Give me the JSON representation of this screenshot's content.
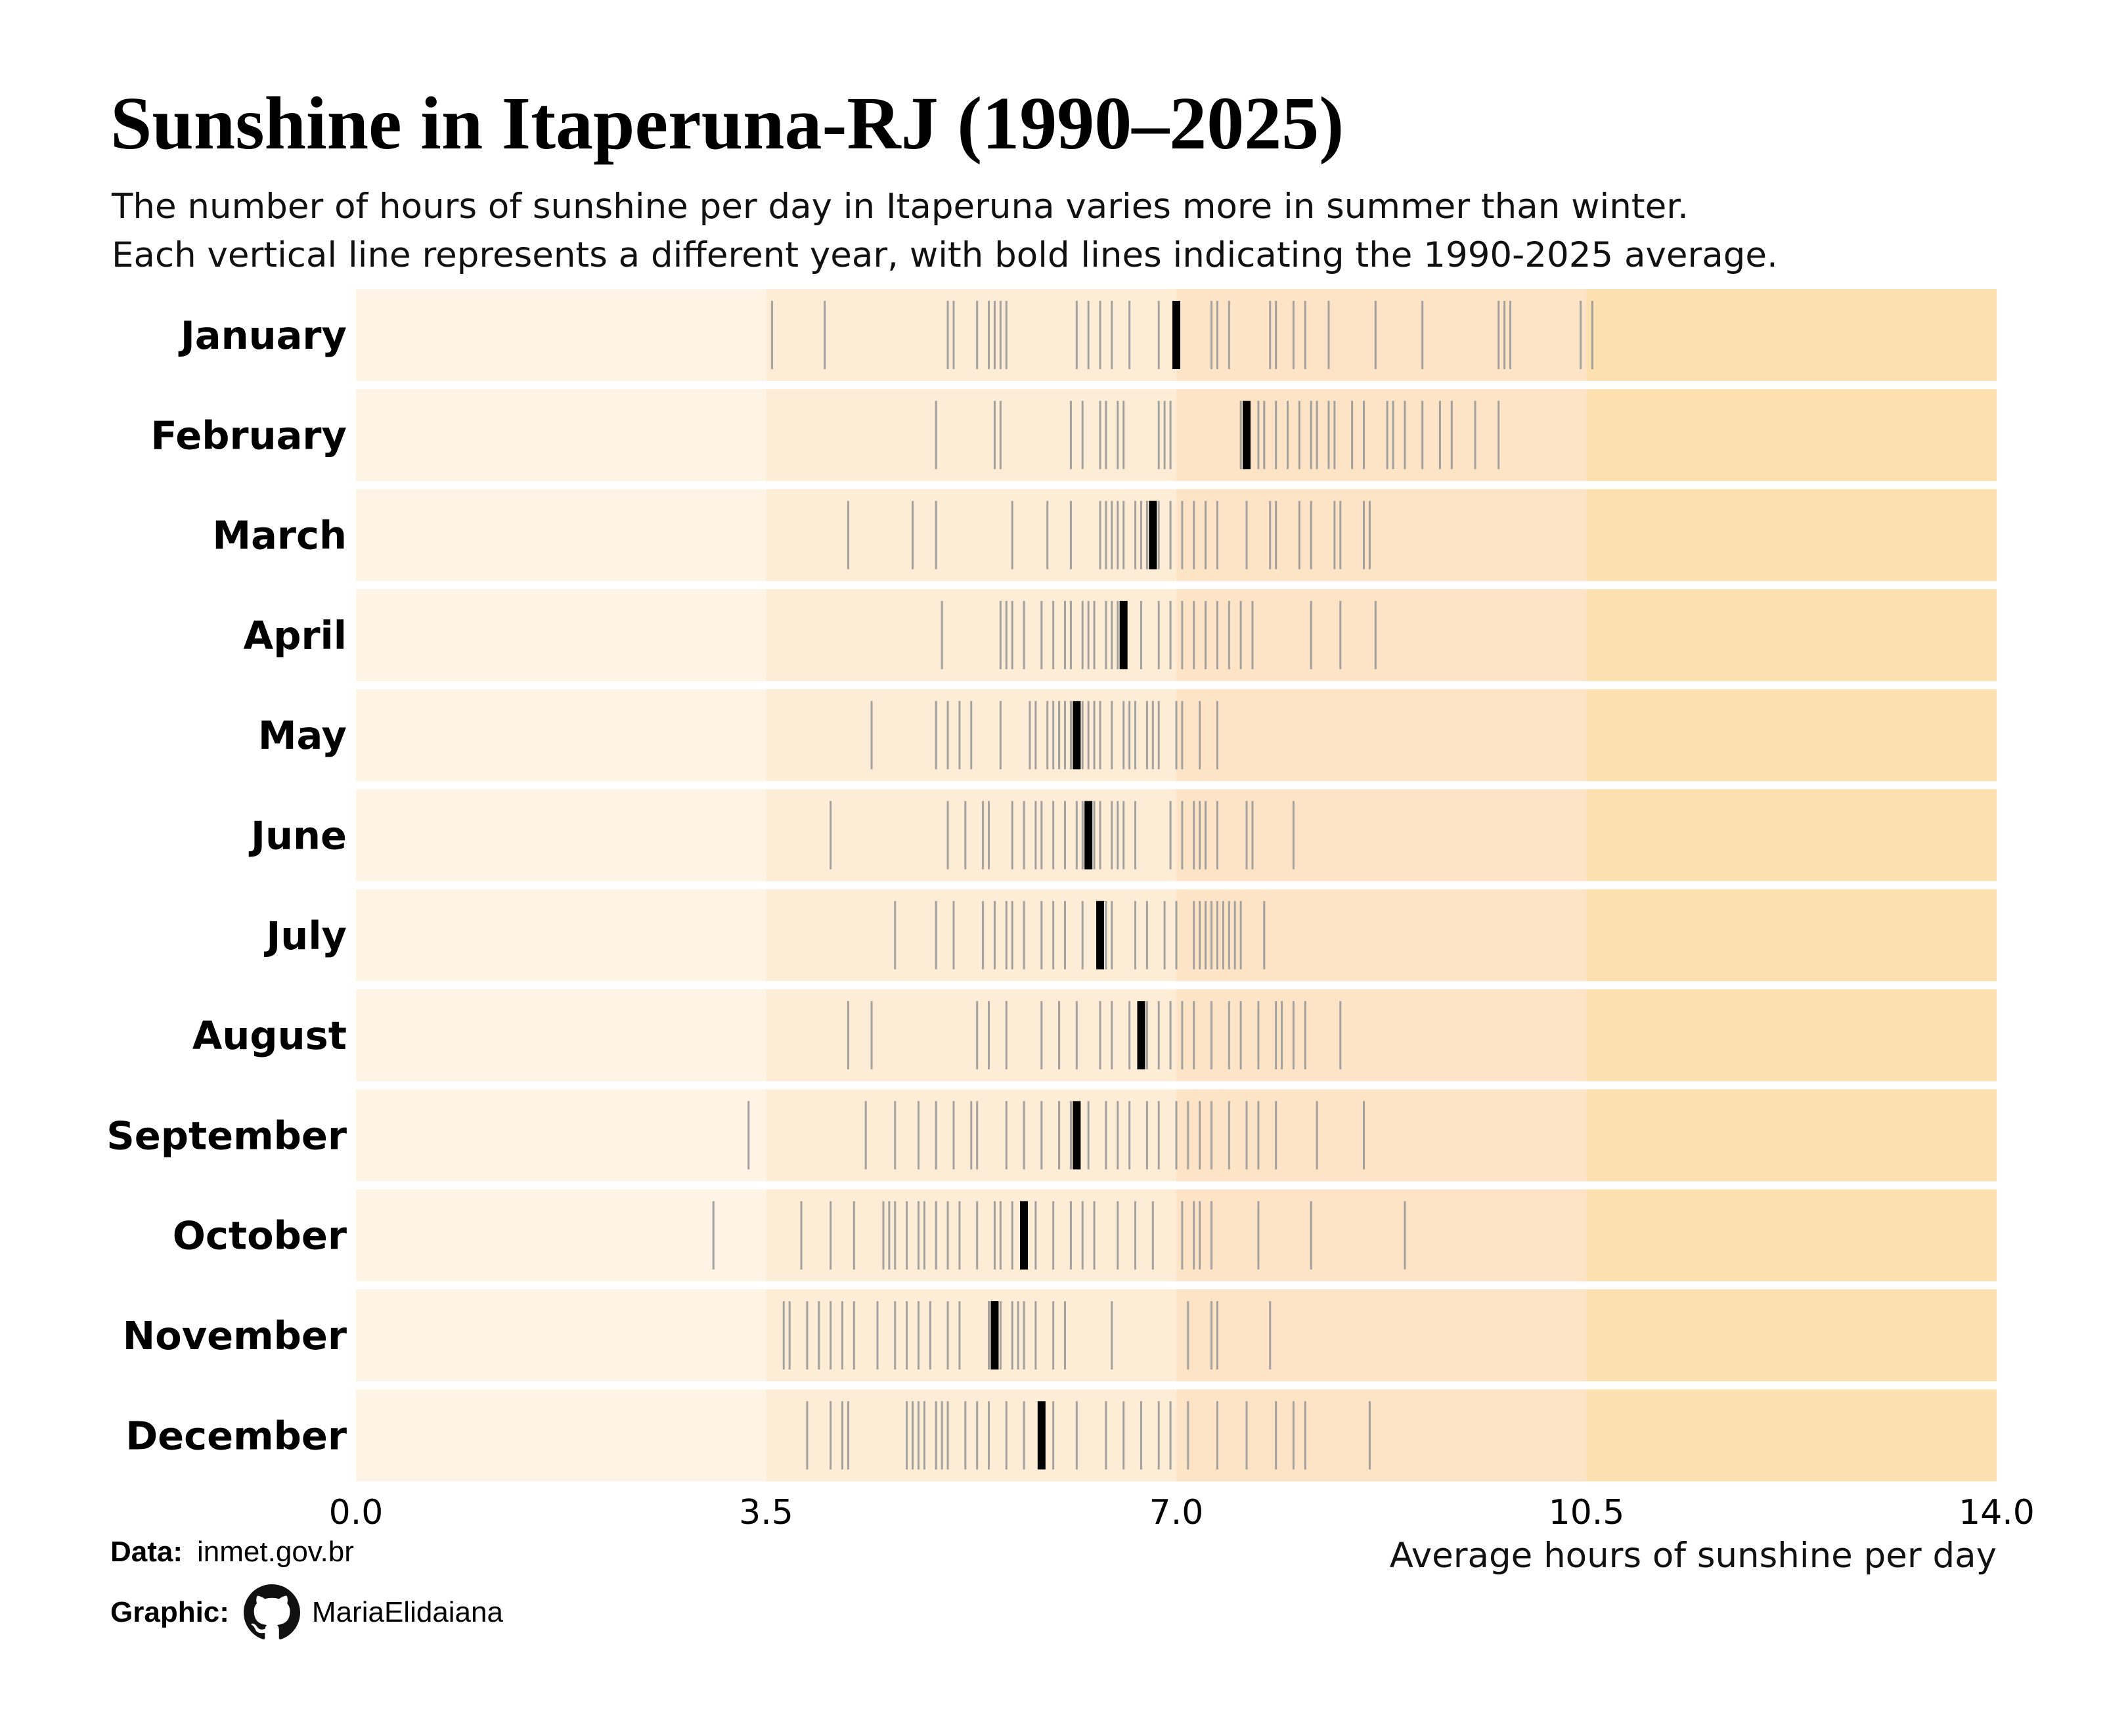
{
  "header": {
    "title": "Sunshine in Itaperuna-RJ (1990–2025)",
    "subtitle_line1": "The number of hours of sunshine per day in Itaperuna varies more in summer than winter.",
    "subtitle_line2": "Each vertical line represents a different year, with bold lines indicating the 1990-2025 average."
  },
  "footer": {
    "data_label": "Data:",
    "data_source": "inmet.gov.br",
    "graphic_label": "Graphic:",
    "author": "MariaElidaiana",
    "author_icon": "github-icon"
  },
  "colors": {
    "band_0_3_5": "#fdf4e6",
    "band_3_5_7": "#fdedd6",
    "band_7_10_5": "#fde4c6",
    "band_10_5_14": "#fde0b0",
    "year_line": "#999999",
    "average_line": "#000000"
  },
  "chart_data": {
    "type": "strip",
    "xlabel": "Average hours of sunshine per day",
    "xlim": [
      0,
      14
    ],
    "xticks": [
      "0.0",
      "3.5",
      "7.0",
      "10.5",
      "14.0"
    ],
    "background_bands": [
      [
        0,
        3.5
      ],
      [
        3.5,
        7.0
      ],
      [
        7.0,
        10.5
      ],
      [
        10.5,
        14.0
      ]
    ],
    "grid": false,
    "legend": "none",
    "months": [
      {
        "name": "January",
        "average": 7.0,
        "years": [
          3.55,
          4.0,
          5.05,
          5.1,
          5.3,
          5.4,
          5.45,
          5.5,
          5.55,
          6.15,
          6.25,
          6.35,
          6.45,
          6.6,
          6.85,
          7.0,
          7.3,
          7.35,
          7.45,
          7.8,
          7.85,
          8.0,
          8.1,
          8.3,
          8.7,
          9.1,
          9.75,
          9.8,
          9.85,
          10.45,
          10.55
        ]
      },
      {
        "name": "February",
        "average": 7.6,
        "years": [
          4.95,
          5.45,
          5.5,
          6.1,
          6.2,
          6.35,
          6.4,
          6.5,
          6.55,
          6.85,
          6.9,
          6.95,
          7.55,
          7.7,
          7.75,
          7.85,
          7.95,
          8.05,
          8.15,
          8.2,
          8.3,
          8.35,
          8.5,
          8.6,
          8.8,
          8.85,
          8.95,
          9.1,
          9.25,
          9.35,
          9.55,
          9.75
        ]
      },
      {
        "name": "March",
        "average": 6.8,
        "years": [
          4.2,
          4.75,
          4.95,
          5.6,
          5.9,
          6.1,
          6.35,
          6.4,
          6.45,
          6.5,
          6.55,
          6.65,
          6.7,
          6.75,
          6.85,
          6.95,
          7.05,
          7.15,
          7.25,
          7.35,
          7.6,
          7.8,
          7.85,
          8.05,
          8.15,
          8.35,
          8.4,
          8.6,
          8.65
        ]
      },
      {
        "name": "April",
        "average": 6.55,
        "years": [
          5.0,
          5.5,
          5.55,
          5.6,
          5.7,
          5.85,
          5.95,
          6.05,
          6.1,
          6.2,
          6.25,
          6.3,
          6.4,
          6.45,
          6.5,
          6.7,
          6.85,
          6.95,
          7.05,
          7.15,
          7.25,
          7.35,
          7.45,
          7.55,
          7.65,
          8.15,
          8.4,
          8.7
        ]
      },
      {
        "name": "May",
        "average": 6.15,
        "years": [
          4.4,
          4.95,
          5.05,
          5.15,
          5.25,
          5.5,
          5.75,
          5.8,
          5.9,
          5.95,
          6.0,
          6.05,
          6.1,
          6.2,
          6.25,
          6.3,
          6.35,
          6.45,
          6.55,
          6.6,
          6.65,
          6.75,
          6.8,
          6.85,
          7.0,
          7.05,
          7.2,
          7.35
        ]
      },
      {
        "name": "June",
        "average": 6.25,
        "years": [
          4.05,
          5.05,
          5.2,
          5.35,
          5.4,
          5.6,
          5.7,
          5.8,
          5.85,
          5.95,
          6.05,
          6.15,
          6.2,
          6.3,
          6.35,
          6.45,
          6.5,
          6.55,
          6.65,
          6.95,
          7.05,
          7.15,
          7.2,
          7.25,
          7.35,
          7.6,
          7.65,
          8.0
        ]
      },
      {
        "name": "July",
        "average": 6.35,
        "years": [
          4.6,
          4.95,
          5.1,
          5.35,
          5.45,
          5.55,
          5.6,
          5.7,
          5.85,
          5.95,
          6.05,
          6.2,
          6.4,
          6.45,
          6.65,
          6.75,
          6.9,
          7.0,
          7.15,
          7.2,
          7.25,
          7.3,
          7.35,
          7.4,
          7.45,
          7.5,
          7.55,
          7.75
        ]
      },
      {
        "name": "August",
        "average": 6.7,
        "years": [
          4.2,
          4.4,
          5.3,
          5.4,
          5.55,
          5.85,
          6.0,
          6.15,
          6.35,
          6.45,
          6.6,
          6.75,
          6.85,
          6.95,
          7.05,
          7.15,
          7.3,
          7.45,
          7.55,
          7.7,
          7.85,
          7.9,
          8.0,
          8.1,
          8.4
        ]
      },
      {
        "name": "September",
        "average": 6.15,
        "years": [
          3.35,
          4.35,
          4.6,
          4.8,
          4.95,
          5.1,
          5.25,
          5.3,
          5.55,
          5.7,
          5.85,
          6.0,
          6.1,
          6.25,
          6.4,
          6.5,
          6.6,
          6.75,
          6.85,
          7.0,
          7.1,
          7.2,
          7.3,
          7.45,
          7.6,
          7.7,
          7.85,
          8.2,
          8.6
        ]
      },
      {
        "name": "October",
        "average": 5.7,
        "years": [
          3.05,
          3.8,
          4.05,
          4.25,
          4.5,
          4.55,
          4.6,
          4.7,
          4.8,
          4.85,
          4.95,
          5.05,
          5.15,
          5.3,
          5.45,
          5.5,
          5.6,
          5.8,
          5.95,
          6.1,
          6.2,
          6.3,
          6.5,
          6.65,
          6.8,
          7.05,
          7.15,
          7.2,
          7.3,
          7.7,
          8.15,
          8.95
        ]
      },
      {
        "name": "November",
        "average": 5.45,
        "years": [
          3.65,
          3.7,
          3.85,
          3.95,
          4.05,
          4.15,
          4.25,
          4.45,
          4.6,
          4.7,
          4.8,
          4.9,
          5.05,
          5.15,
          5.4,
          5.5,
          5.6,
          5.65,
          5.7,
          5.8,
          5.95,
          6.05,
          6.45,
          7.1,
          7.3,
          7.35,
          7.8
        ]
      },
      {
        "name": "December",
        "average": 5.85,
        "years": [
          3.85,
          4.05,
          4.15,
          4.2,
          4.7,
          4.75,
          4.8,
          4.85,
          4.95,
          5.0,
          5.05,
          5.2,
          5.3,
          5.4,
          5.55,
          5.7,
          5.95,
          6.15,
          6.4,
          6.55,
          6.7,
          6.85,
          6.95,
          7.1,
          7.35,
          7.6,
          7.85,
          8.0,
          8.1,
          8.65
        ]
      }
    ]
  }
}
